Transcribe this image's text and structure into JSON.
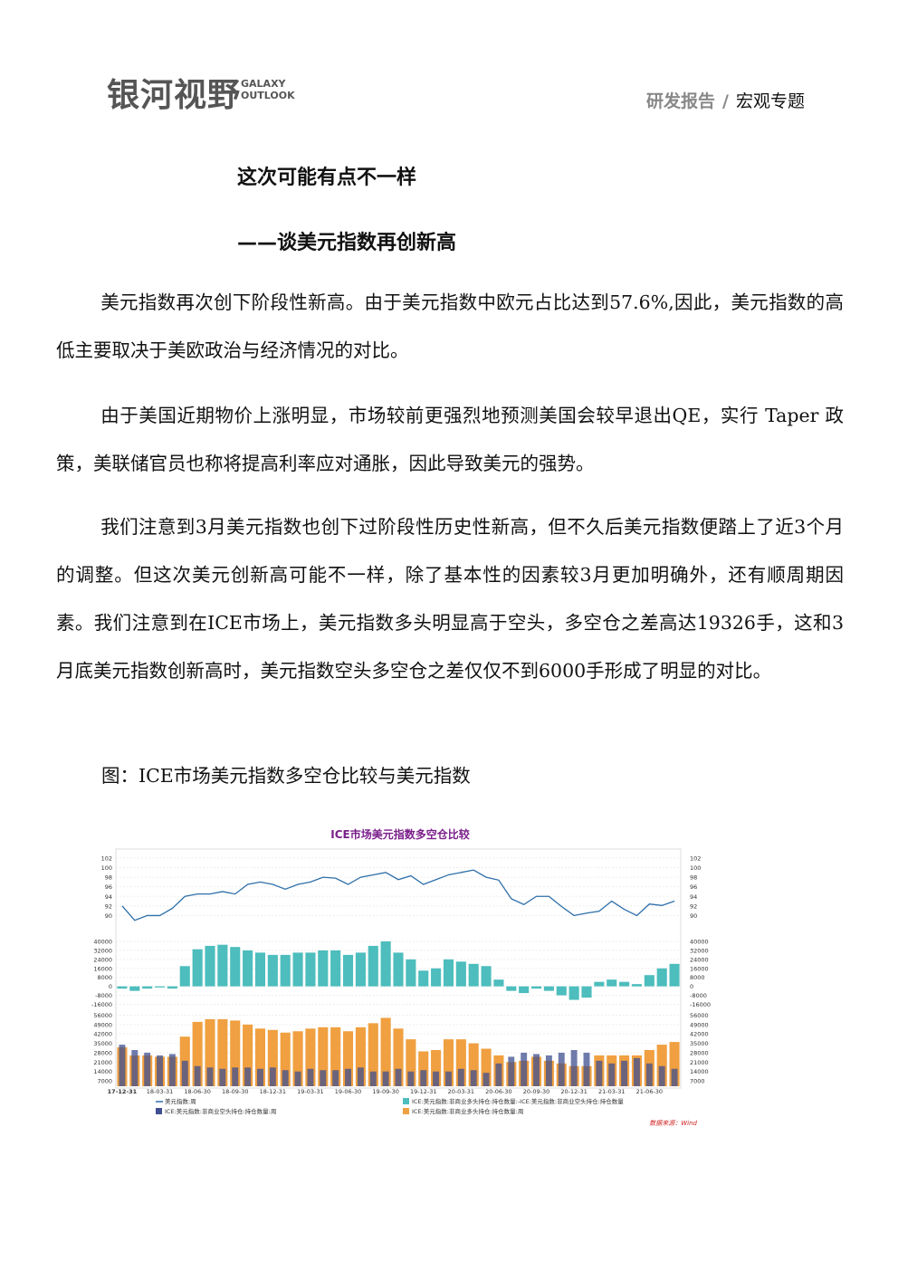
{
  "header": {
    "logo": "银河视野",
    "logo_en": "GALAXY OUTLOOK",
    "category": "研发报告",
    "separator": "/",
    "section": "宏观专题"
  },
  "title": "这次可能有点不一样",
  "subtitle": "——谈美元指数再创新高",
  "paragraphs": [
    "美元指数再次创下阶段性新高。由于美元指数中欧元占比达到57.6%,因此，美元指数的高低主要取决于美欧政治与经济情况的对比。",
    "由于美国近期物价上涨明显，市场较前更强烈地预测美国会较早退出QE，实行 Taper 政策，美联储官员也称将提高利率应对通胀，因此导致美元的强势。",
    "我们注意到3月美元指数也创下过阶段性历史性新高，但不久后美元指数便踏上了近3个月的调整。但这次美元创新高可能不一样，除了基本性的因素较3月更加明确外，还有顺周期因素。我们注意到在ICE市场上，美元指数多头明显高于空头，多空仓之差高达19326手，这和3月底美元指数创新高时，美元指数空头多空仓之差仅仅不到6000手形成了明显的对比。"
  ],
  "caption": "图：ICE市场美元指数多空仓比较与美元指数",
  "chart_data": {
    "type": "multi-panel",
    "title": "ICE市场美元指数多空仓比较",
    "source": "数据来源：Wind",
    "categories": [
      "17-12-31",
      null,
      null,
      "18-03-31",
      null,
      null,
      "18-06-30",
      null,
      null,
      "18-09-30",
      null,
      null,
      "18-12-31",
      null,
      null,
      "19-03-31",
      null,
      null,
      "19-06-30",
      null,
      null,
      "19-09-30",
      null,
      null,
      "19-12-31",
      null,
      null,
      "20-03-31",
      null,
      null,
      "20-06-30",
      null,
      null,
      "20-09-30",
      null,
      null,
      "20-12-31",
      null,
      null,
      "21-03-31",
      null,
      null,
      "21-06-30",
      null,
      null
    ],
    "panels": [
      {
        "type": "line",
        "ylim": [
          88,
          103.5
        ],
        "yticks": [
          90,
          92,
          94,
          96,
          98,
          100,
          102
        ],
        "series": [
          {
            "name": "美元指数:周",
            "color": "#2e6fa8",
            "values": [
              92,
              89,
              90,
              90,
              91.5,
              94,
              94.5,
              94.5,
              95,
              94.5,
              96.5,
              97,
              96.5,
              95.5,
              96.5,
              97,
              98,
              97.8,
              96.5,
              98,
              98.5,
              99,
              97.5,
              98.3,
              96.5,
              97.5,
              98.5,
              99,
              99.5,
              98,
              97.4,
              93.5,
              92.3,
              94,
              94,
              91.9,
              90,
              90.5,
              90.9,
              93,
              91.3,
              90,
              92.4,
              92.1,
              93
            ]
          }
        ]
      },
      {
        "type": "bar",
        "ylim": [
          -18000,
          44000
        ],
        "yticks": [
          -16000,
          -8000,
          0,
          8000,
          16000,
          24000,
          32000,
          40000
        ],
        "series": [
          {
            "name": "ICE:美元指数:非商业多头持仓:持仓数量:-ICE:美元指数:非商业空头持仓:持仓数量",
            "color": "#4dbdbd",
            "values": [
              -2000,
              -4000,
              -2000,
              -1000,
              -2000,
              18000,
              33000,
              36000,
              37000,
              35000,
              32000,
              30000,
              28000,
              28000,
              30000,
              30000,
              32000,
              32000,
              28000,
              30000,
              36000,
              40000,
              30000,
              24000,
              14000,
              16000,
              24000,
              22000,
              20000,
              18000,
              6000,
              -4000,
              -6000,
              -2000,
              -4000,
              -8000,
              -12000,
              -10000,
              4000,
              6000,
              4000,
              2000,
              10000,
              16000,
              20000
            ]
          }
        ]
      },
      {
        "type": "overlap-bar",
        "ylim": [
          3000,
          57000
        ],
        "yticks": [
          7000,
          14000,
          21000,
          28000,
          35000,
          42000,
          49000,
          56000
        ],
        "series": [
          {
            "name": "ICE:美元指数:非商业多头持仓:持仓数量:周",
            "color": "#f0a040",
            "values": [
              32000,
              26000,
              26000,
              25000,
              25000,
              40000,
              51000,
              53000,
              53000,
              52000,
              49000,
              46000,
              45000,
              43000,
              44000,
              46000,
              47000,
              47000,
              44000,
              47000,
              50000,
              54000,
              46000,
              38000,
              29000,
              30000,
              38000,
              38000,
              35000,
              31000,
              26000,
              21000,
              22000,
              25000,
              22000,
              20000,
              18000,
              18000,
              26000,
              26000,
              26000,
              26000,
              30000,
              34000,
              36000
            ]
          },
          {
            "name": "ICE:美元指数:非商业空头持仓:持仓数量:周",
            "color": "#3f4f8f",
            "values": [
              34000,
              30000,
              28000,
              26000,
              27000,
              22000,
              18000,
              17000,
              16000,
              17000,
              17000,
              16000,
              17000,
              15000,
              14000,
              16000,
              15000,
              15000,
              16000,
              17000,
              14000,
              14000,
              16000,
              14000,
              15000,
              14000,
              14000,
              16000,
              15000,
              13000,
              20000,
              25000,
              28000,
              27000,
              26000,
              28000,
              30000,
              28000,
              22000,
              20000,
              22000,
              24000,
              20000,
              18000,
              16000
            ]
          }
        ]
      }
    ]
  }
}
